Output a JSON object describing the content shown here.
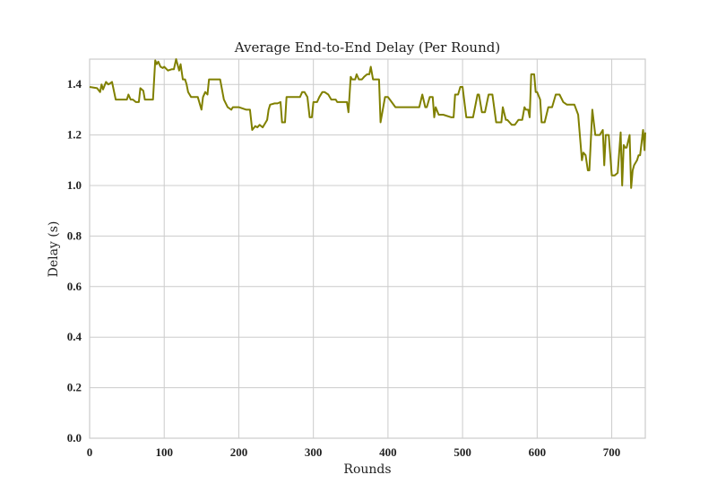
{
  "chart_data": {
    "type": "line",
    "title": "Average End-to-End Delay (Per Round)",
    "xlabel": "Rounds",
    "ylabel": "Delay (s)",
    "xlim": [
      0,
      745
    ],
    "ylim": [
      0.0,
      1.5
    ],
    "xticks": [
      0,
      100,
      200,
      300,
      400,
      500,
      600,
      700
    ],
    "yticks": [
      0.0,
      0.2,
      0.4,
      0.6,
      0.8,
      1.0,
      1.2,
      1.4
    ],
    "grid": true,
    "legend": "none",
    "line_color": "#808000",
    "series": [
      {
        "x": [
          0,
          10,
          14,
          16,
          18,
          22,
          25,
          28,
          30,
          35,
          38,
          40,
          50,
          52,
          55,
          58,
          62,
          66,
          68,
          72,
          74,
          78,
          83,
          85,
          88,
          90,
          92,
          95,
          98,
          100,
          105,
          110,
          113,
          116,
          120,
          122,
          125,
          128,
          130,
          132,
          136,
          140,
          145,
          150,
          152,
          155,
          158,
          160,
          164,
          168,
          170,
          175,
          180,
          185,
          190,
          192,
          195,
          200,
          210,
          215,
          218,
          222,
          225,
          228,
          232,
          238,
          240,
          242,
          248,
          252,
          256,
          258,
          262,
          264,
          270,
          275,
          282,
          285,
          288,
          292,
          295,
          298,
          300,
          305,
          308,
          312,
          315,
          320,
          324,
          328,
          330,
          332,
          340,
          345,
          347,
          350,
          352,
          356,
          358,
          361,
          365,
          368,
          372,
          375,
          377,
          380,
          385,
          388,
          390,
          396,
          400,
          405,
          410,
          440,
          442,
          446,
          450,
          452,
          456,
          460,
          462,
          464,
          468,
          470,
          474,
          485,
          488,
          490,
          494,
          497,
          500,
          505,
          512,
          514,
          520,
          522,
          526,
          530,
          535,
          540,
          545,
          552,
          554,
          558,
          560,
          563,
          566,
          570,
          575,
          580,
          583,
          585,
          588,
          590,
          592,
          596,
          598,
          600,
          604,
          606,
          610,
          615,
          620,
          625,
          630,
          635,
          640,
          645,
          650,
          655,
          660,
          662,
          665,
          668,
          670,
          674,
          678,
          680,
          684,
          688,
          690,
          692,
          696,
          700,
          704,
          708,
          712,
          714,
          716,
          718,
          720,
          724,
          726,
          728,
          730,
          734,
          736,
          738,
          742,
          744,
          745
        ],
        "y": [
          1.39,
          1.385,
          1.37,
          1.4,
          1.38,
          1.41,
          1.4,
          1.405,
          1.41,
          1.34,
          1.34,
          1.34,
          1.34,
          1.36,
          1.34,
          1.34,
          1.33,
          1.33,
          1.385,
          1.375,
          1.34,
          1.34,
          1.34,
          1.34,
          1.495,
          1.48,
          1.49,
          1.47,
          1.465,
          1.47,
          1.455,
          1.46,
          1.46,
          1.5,
          1.455,
          1.48,
          1.42,
          1.42,
          1.4,
          1.37,
          1.35,
          1.35,
          1.35,
          1.3,
          1.35,
          1.37,
          1.36,
          1.42,
          1.42,
          1.42,
          1.42,
          1.42,
          1.34,
          1.31,
          1.3,
          1.31,
          1.31,
          1.31,
          1.3,
          1.3,
          1.22,
          1.235,
          1.23,
          1.24,
          1.23,
          1.26,
          1.3,
          1.32,
          1.325,
          1.325,
          1.33,
          1.25,
          1.25,
          1.35,
          1.35,
          1.35,
          1.35,
          1.37,
          1.37,
          1.35,
          1.27,
          1.27,
          1.33,
          1.33,
          1.35,
          1.37,
          1.37,
          1.36,
          1.34,
          1.34,
          1.34,
          1.33,
          1.33,
          1.33,
          1.29,
          1.43,
          1.42,
          1.42,
          1.44,
          1.42,
          1.42,
          1.43,
          1.44,
          1.44,
          1.47,
          1.42,
          1.42,
          1.42,
          1.25,
          1.35,
          1.35,
          1.33,
          1.31,
          1.31,
          1.31,
          1.36,
          1.31,
          1.31,
          1.35,
          1.35,
          1.27,
          1.31,
          1.28,
          1.28,
          1.28,
          1.27,
          1.27,
          1.36,
          1.36,
          1.39,
          1.39,
          1.27,
          1.27,
          1.27,
          1.36,
          1.36,
          1.29,
          1.29,
          1.36,
          1.36,
          1.25,
          1.25,
          1.31,
          1.26,
          1.26,
          1.25,
          1.24,
          1.24,
          1.26,
          1.26,
          1.31,
          1.3,
          1.3,
          1.27,
          1.44,
          1.44,
          1.37,
          1.37,
          1.34,
          1.25,
          1.25,
          1.31,
          1.31,
          1.36,
          1.36,
          1.33,
          1.32,
          1.32,
          1.32,
          1.28,
          1.1,
          1.13,
          1.12,
          1.06,
          1.06,
          1.3,
          1.2,
          1.2,
          1.2,
          1.22,
          1.08,
          1.2,
          1.2,
          1.04,
          1.04,
          1.05,
          1.21,
          1.0,
          1.16,
          1.15,
          1.15,
          1.2,
          0.99,
          1.06,
          1.08,
          1.1,
          1.12,
          1.12,
          1.22,
          1.14,
          1.21
        ]
      }
    ]
  }
}
